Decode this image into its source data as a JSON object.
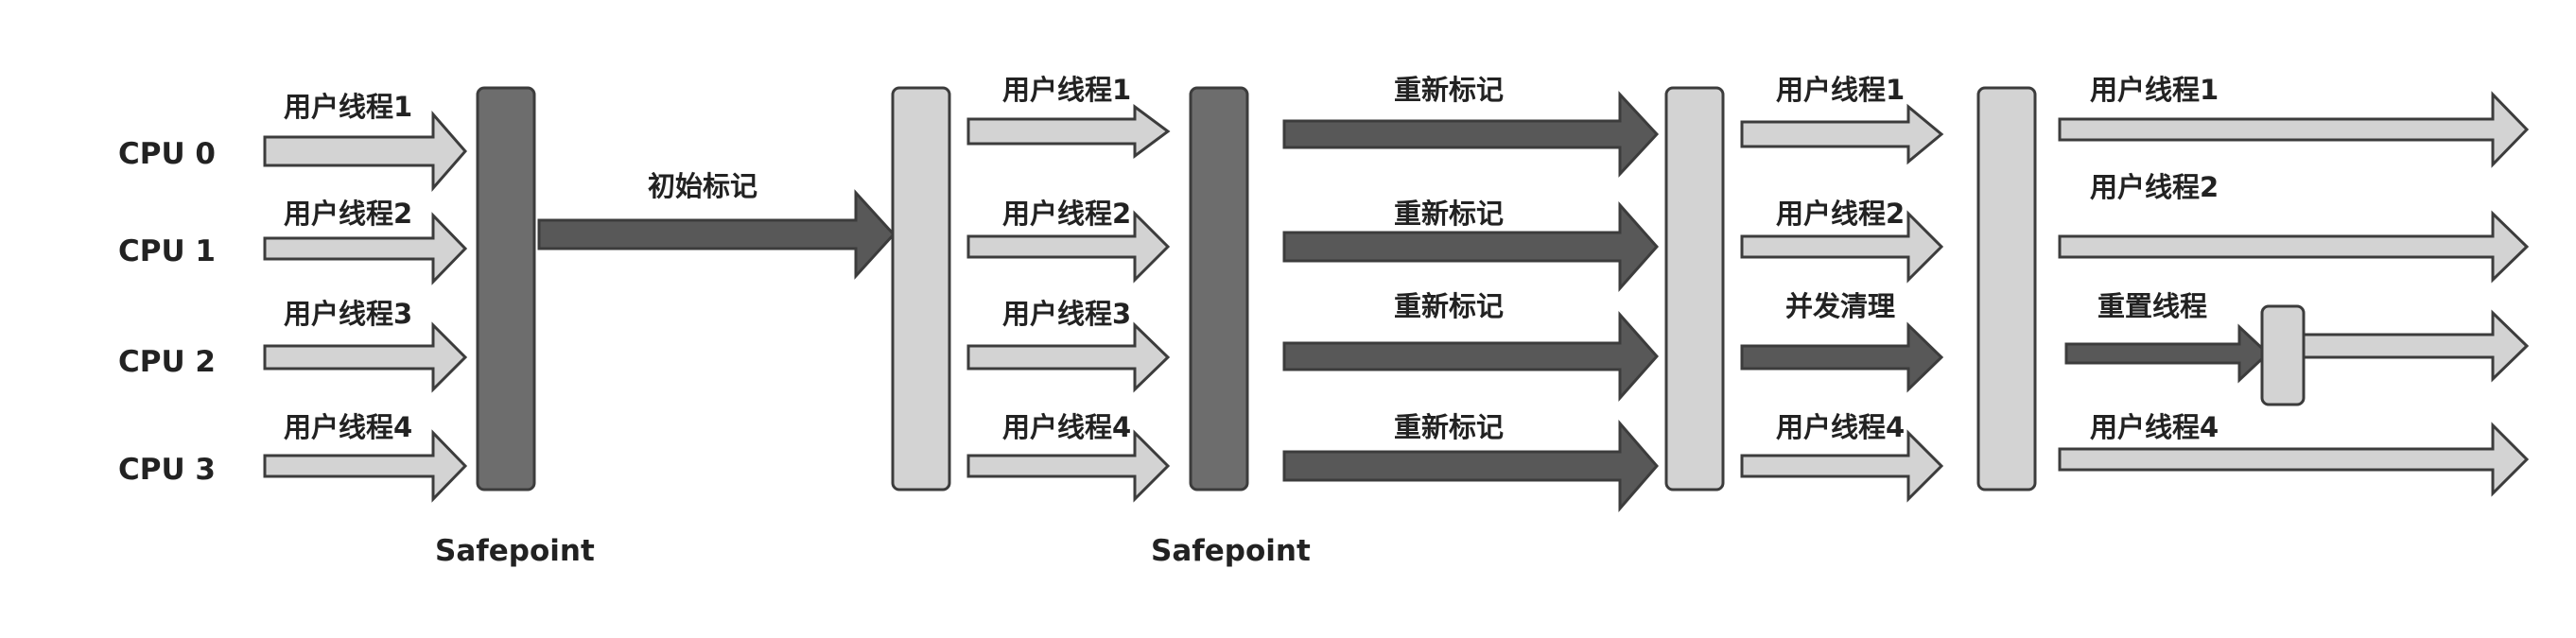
{
  "colors": {
    "light": "#d3d3d3",
    "dark": "#6d6d6d",
    "darker": "#585858",
    "stroke": "#3c3c3c"
  },
  "cpus": [
    "CPU 0",
    "CPU 1",
    "CPU 2",
    "CPU 3"
  ],
  "phase1": {
    "labels": [
      "用户线程1",
      "用户线程2",
      "用户线程3",
      "用户线程4"
    ],
    "safepoint": "Safepoint"
  },
  "initial_mark": "初始标记",
  "phase2": {
    "labels": [
      "用户线程1",
      "用户线程2",
      "用户线程3",
      "用户线程4"
    ],
    "safepoint": "Safepoint"
  },
  "remark": [
    "重新标记",
    "重新标记",
    "重新标记",
    "重新标记"
  ],
  "phase3": {
    "labels": [
      "用户线程1",
      "用户线程2",
      "并发清理",
      "用户线程4"
    ]
  },
  "phase4": {
    "labels": [
      "用户线程1",
      "用户线程2",
      "重置线程",
      "用户线程4"
    ]
  }
}
